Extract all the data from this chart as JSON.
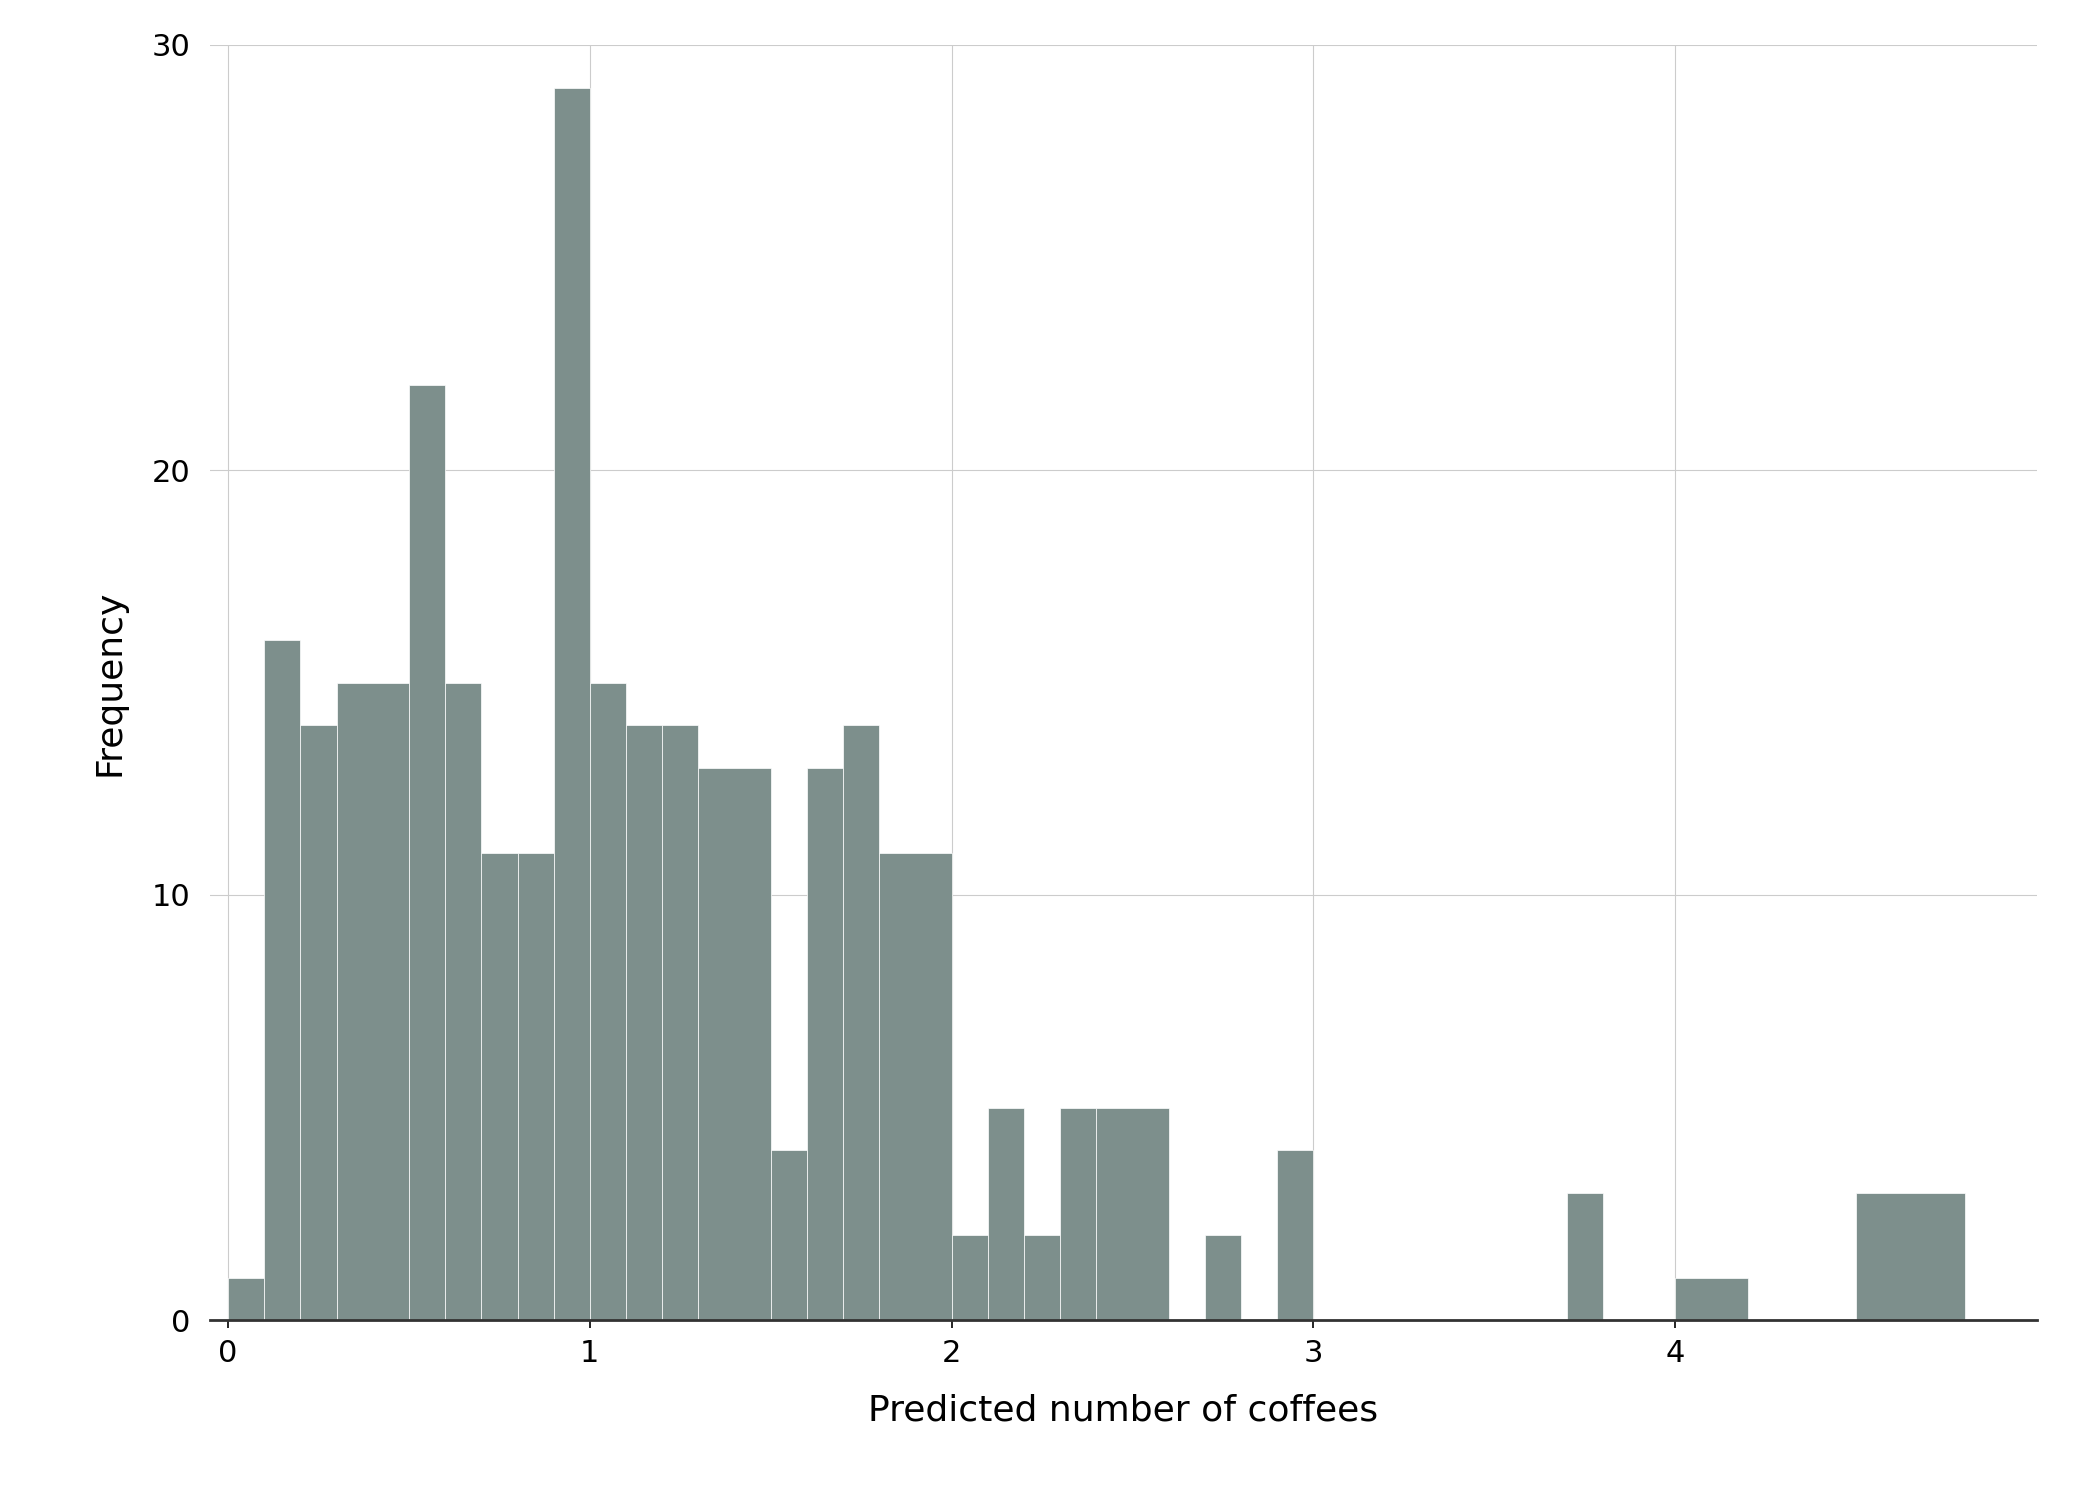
{
  "xlabel": "Predicted number of coffees",
  "ylabel": "Frequency",
  "bar_color": "#7d8f8c",
  "background_color": "#ffffff",
  "grid_color": "#cccccc",
  "xlim": [
    -0.05,
    5.0
  ],
  "ylim": [
    0,
    30
  ],
  "yticks": [
    0,
    10,
    20,
    30
  ],
  "xticks": [
    0,
    1,
    2,
    3,
    4
  ],
  "bin_edges": [
    0.0,
    0.1,
    0.2,
    0.3,
    0.5,
    0.6,
    0.7,
    0.8,
    0.9,
    1.0,
    1.1,
    1.2,
    1.3,
    1.5,
    1.6,
    1.7,
    1.8,
    2.0,
    2.1,
    2.2,
    2.3,
    2.4,
    2.6,
    2.7,
    2.8,
    2.9,
    3.0,
    3.1,
    3.7,
    3.8,
    4.0,
    4.2,
    4.5,
    4.8
  ],
  "heights": [
    1,
    16,
    14,
    15,
    22,
    15,
    11,
    11,
    29,
    15,
    14,
    14,
    13,
    4,
    13,
    14,
    11,
    2,
    5,
    2,
    5,
    5,
    0,
    2,
    0,
    4,
    0,
    0,
    3,
    0,
    1,
    0,
    3,
    0
  ]
}
